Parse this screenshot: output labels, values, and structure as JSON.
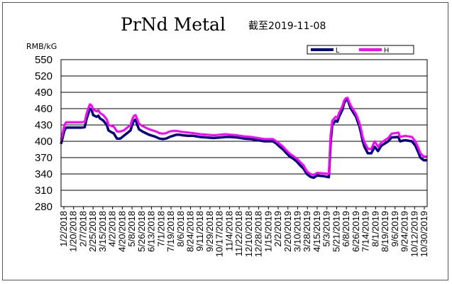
{
  "chart_data": {
    "type": "line",
    "title": "PrNd Metal",
    "subtitle": "截至2019-11-08",
    "xlabel": "",
    "ylabel": "RMB/kG",
    "ylim": [
      280,
      550
    ],
    "yticks": [
      280,
      310,
      340,
      370,
      400,
      430,
      460,
      490,
      520,
      550
    ],
    "grid": true,
    "legend_position": "top-right",
    "colors": {
      "L": "#000080",
      "H": "#ff00ff"
    },
    "categories": [
      "1/2/2018",
      "1/20/2018",
      "2/7/2018",
      "2/25/2018",
      "3/15/2018",
      "4/2/2018",
      "4/20/2018",
      "5/8/2018",
      "5/26/2018",
      "6/13/2018",
      "7/1/2018",
      "7/19/2018",
      "8/6/2018",
      "8/24/2018",
      "9/11/2018",
      "9/29/2018",
      "10/17/2018",
      "11/4/2018",
      "11/22/2018",
      "12/10/2018",
      "12/28/2018",
      "1/15/2019",
      "2/2/2019",
      "2/20/2019",
      "3/10/2019",
      "3/28/2019",
      "4/15/2019",
      "5/3/2019",
      "5/21/2019",
      "6/8/2019",
      "6/26/2019",
      "7/14/2019",
      "8/1/2019",
      "8/19/2019",
      "9/6/2019",
      "9/24/2019",
      "10/12/2019",
      "10/30/2019"
    ],
    "series": [
      {
        "name": "L",
        "points": [
          [
            0,
            395
          ],
          [
            2,
            420
          ],
          [
            3,
            425
          ],
          [
            8,
            425
          ],
          [
            10,
            425
          ],
          [
            12,
            425
          ],
          [
            14,
            426
          ],
          [
            15,
            440
          ],
          [
            16,
            450
          ],
          [
            17,
            460
          ],
          [
            18,
            458
          ],
          [
            19,
            448
          ],
          [
            21,
            445
          ],
          [
            22,
            447
          ],
          [
            23,
            442
          ],
          [
            25,
            438
          ],
          [
            27,
            430
          ],
          [
            28,
            420
          ],
          [
            30,
            416
          ],
          [
            31,
            415
          ],
          [
            32,
            410
          ],
          [
            33,
            405
          ],
          [
            35,
            405
          ],
          [
            37,
            410
          ],
          [
            39,
            415
          ],
          [
            41,
            420
          ],
          [
            42,
            430
          ],
          [
            43,
            438
          ],
          [
            44,
            440
          ],
          [
            45,
            430
          ],
          [
            46,
            422
          ],
          [
            48,
            418
          ],
          [
            50,
            415
          ],
          [
            52,
            412
          ],
          [
            54,
            410
          ],
          [
            56,
            408
          ],
          [
            58,
            405
          ],
          [
            60,
            404
          ],
          [
            62,
            405
          ],
          [
            64,
            408
          ],
          [
            66,
            410
          ],
          [
            68,
            412
          ],
          [
            70,
            412
          ],
          [
            72,
            411
          ],
          [
            75,
            410
          ],
          [
            78,
            410
          ],
          [
            82,
            408
          ],
          [
            86,
            407
          ],
          [
            90,
            406
          ],
          [
            94,
            407
          ],
          [
            97,
            408
          ],
          [
            100,
            408
          ],
          [
            104,
            407
          ],
          [
            108,
            405
          ],
          [
            112,
            404
          ],
          [
            116,
            402
          ],
          [
            120,
            400
          ],
          [
            122,
            400
          ],
          [
            125,
            400
          ],
          [
            127,
            396
          ],
          [
            129,
            390
          ],
          [
            131,
            385
          ],
          [
            133,
            378
          ],
          [
            135,
            372
          ],
          [
            137,
            368
          ],
          [
            139,
            363
          ],
          [
            141,
            356
          ],
          [
            143,
            350
          ],
          [
            145,
            340
          ],
          [
            147,
            335
          ],
          [
            149,
            333
          ],
          [
            151,
            337
          ],
          [
            155,
            336
          ],
          [
            158,
            334
          ],
          [
            159,
            395
          ],
          [
            160,
            430
          ],
          [
            162,
            438
          ],
          [
            163,
            436
          ],
          [
            164,
            445
          ],
          [
            166,
            458
          ],
          [
            167,
            470
          ],
          [
            168,
            475
          ],
          [
            169,
            478
          ],
          [
            170,
            468
          ],
          [
            171,
            460
          ],
          [
            172,
            455
          ],
          [
            174,
            445
          ],
          [
            175,
            436
          ],
          [
            176,
            428
          ],
          [
            177,
            415
          ],
          [
            178,
            400
          ],
          [
            179,
            390
          ],
          [
            181,
            378
          ],
          [
            183,
            378
          ],
          [
            185,
            390
          ],
          [
            187,
            382
          ],
          [
            189,
            392
          ],
          [
            191,
            396
          ],
          [
            193,
            400
          ],
          [
            195,
            407
          ],
          [
            199,
            408
          ],
          [
            200,
            400
          ],
          [
            203,
            402
          ],
          [
            207,
            400
          ],
          [
            209,
            392
          ],
          [
            211,
            378
          ],
          [
            212,
            370
          ],
          [
            214,
            365
          ],
          [
            216,
            365
          ]
        ]
      },
      {
        "name": "H",
        "points": [
          [
            0,
            402
          ],
          [
            2,
            430
          ],
          [
            3,
            435
          ],
          [
            8,
            435
          ],
          [
            10,
            435
          ],
          [
            12,
            435
          ],
          [
            14,
            436
          ],
          [
            15,
            450
          ],
          [
            16,
            460
          ],
          [
            17,
            468
          ],
          [
            18,
            466
          ],
          [
            19,
            458
          ],
          [
            21,
            455
          ],
          [
            22,
            457
          ],
          [
            23,
            452
          ],
          [
            25,
            448
          ],
          [
            27,
            440
          ],
          [
            28,
            430
          ],
          [
            30,
            428
          ],
          [
            31,
            427
          ],
          [
            32,
            423
          ],
          [
            33,
            418
          ],
          [
            35,
            418
          ],
          [
            37,
            420
          ],
          [
            39,
            425
          ],
          [
            41,
            430
          ],
          [
            42,
            440
          ],
          [
            43,
            447
          ],
          [
            44,
            448
          ],
          [
            45,
            440
          ],
          [
            46,
            432
          ],
          [
            48,
            428
          ],
          [
            50,
            425
          ],
          [
            52,
            422
          ],
          [
            54,
            420
          ],
          [
            56,
            418
          ],
          [
            58,
            415
          ],
          [
            60,
            414
          ],
          [
            62,
            415
          ],
          [
            64,
            418
          ],
          [
            66,
            419
          ],
          [
            68,
            419
          ],
          [
            70,
            418
          ],
          [
            72,
            417
          ],
          [
            75,
            416
          ],
          [
            78,
            415
          ],
          [
            82,
            413
          ],
          [
            86,
            412
          ],
          [
            90,
            411
          ],
          [
            94,
            412
          ],
          [
            97,
            413
          ],
          [
            100,
            412
          ],
          [
            104,
            411
          ],
          [
            108,
            409
          ],
          [
            112,
            408
          ],
          [
            116,
            406
          ],
          [
            120,
            404
          ],
          [
            122,
            404
          ],
          [
            125,
            404
          ],
          [
            127,
            400
          ],
          [
            129,
            395
          ],
          [
            131,
            390
          ],
          [
            133,
            383
          ],
          [
            135,
            377
          ],
          [
            137,
            373
          ],
          [
            139,
            368
          ],
          [
            141,
            362
          ],
          [
            143,
            356
          ],
          [
            145,
            345
          ],
          [
            147,
            340
          ],
          [
            149,
            338
          ],
          [
            151,
            342
          ],
          [
            155,
            341
          ],
          [
            158,
            340
          ],
          [
            159,
            410
          ],
          [
            160,
            438
          ],
          [
            162,
            445
          ],
          [
            163,
            443
          ],
          [
            164,
            452
          ],
          [
            166,
            465
          ],
          [
            167,
            475
          ],
          [
            168,
            479
          ],
          [
            169,
            480
          ],
          [
            170,
            472
          ],
          [
            171,
            465
          ],
          [
            172,
            460
          ],
          [
            174,
            450
          ],
          [
            175,
            442
          ],
          [
            176,
            434
          ],
          [
            177,
            422
          ],
          [
            178,
            407
          ],
          [
            179,
            398
          ],
          [
            181,
            386
          ],
          [
            183,
            386
          ],
          [
            185,
            400
          ],
          [
            187,
            390
          ],
          [
            189,
            398
          ],
          [
            191,
            402
          ],
          [
            193,
            406
          ],
          [
            195,
            414
          ],
          [
            199,
            416
          ],
          [
            200,
            408
          ],
          [
            203,
            410
          ],
          [
            207,
            408
          ],
          [
            209,
            400
          ],
          [
            211,
            386
          ],
          [
            212,
            378
          ],
          [
            214,
            372
          ],
          [
            216,
            372
          ]
        ]
      }
    ]
  }
}
